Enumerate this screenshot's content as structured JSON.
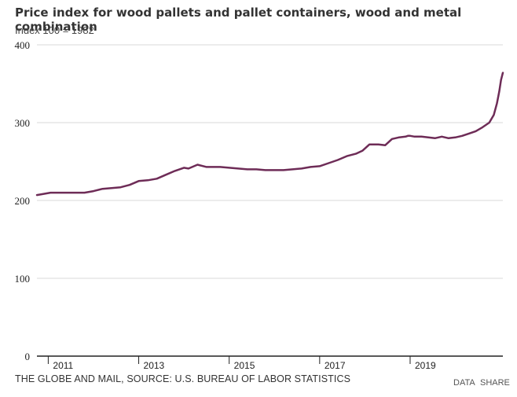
{
  "footer": {
    "source": "THE GLOBE AND MAIL, SOURCE: U.S. BUREAU OF LABOR STATISTICS",
    "data_label": "DATA",
    "share_label": "SHARE"
  },
  "colors": {
    "line": "#6e2c57",
    "grid": "#d9d9d9",
    "axis": "#222222"
  },
  "chart_data": {
    "type": "line",
    "title": "Price index for wood pallets and pallet containers, wood and metal combination",
    "subtitle": "Index 100 = 1982",
    "xlabel": "",
    "ylabel": "",
    "ylim": [
      0,
      400
    ],
    "xlim": [
      2010.75,
      2021.05
    ],
    "yticks": [
      0,
      100,
      200,
      300,
      400
    ],
    "yticklabels": [
      "0",
      "100",
      "200",
      "300",
      "400"
    ],
    "xticks": [
      2011,
      2013,
      2015,
      2017,
      2019
    ],
    "xticklabels": [
      "2011",
      "2013",
      "2015",
      "2017",
      "2019"
    ],
    "grid": true,
    "series": [
      {
        "x": [
          2010.75,
          2010.85,
          2010.95,
          2011.05,
          2011.2,
          2011.4,
          2011.6,
          2011.8,
          2012.0,
          2012.2,
          2012.4,
          2012.6,
          2012.8,
          2013.0,
          2013.2,
          2013.4,
          2013.6,
          2013.8,
          2013.9,
          2014.0,
          2014.1,
          2014.3,
          2014.5,
          2014.7,
          2014.8,
          2015.0,
          2015.2,
          2015.4,
          2015.6,
          2015.8,
          2016.0,
          2016.2,
          2016.4,
          2016.6,
          2016.8,
          2017.0,
          2017.2,
          2017.4,
          2017.6,
          2017.8,
          2017.95,
          2018.1,
          2018.2,
          2018.3,
          2018.45,
          2018.6,
          2018.75,
          2018.9,
          2018.95,
          2019.0,
          2019.1,
          2019.25,
          2019.4,
          2019.55,
          2019.7,
          2019.85,
          2020.0,
          2020.15,
          2020.3,
          2020.45,
          2020.6,
          2020.75,
          2020.85,
          2020.92,
          2020.97,
          2021.01,
          2021.05
        ],
        "values": [
          207,
          208,
          209,
          210,
          210,
          210,
          210,
          210,
          212,
          215,
          216,
          217,
          220,
          225,
          226,
          228,
          233,
          238,
          240,
          242,
          241,
          246,
          243,
          243,
          243,
          242,
          241,
          240,
          240,
          239,
          239,
          239,
          240,
          241,
          243,
          244,
          248,
          252,
          257,
          260,
          264,
          272,
          272,
          272,
          271,
          279,
          281,
          282,
          283,
          283,
          282,
          282,
          281,
          280,
          282,
          280,
          281,
          283,
          286,
          289,
          294,
          300,
          310,
          325,
          340,
          355,
          364
        ]
      }
    ]
  }
}
